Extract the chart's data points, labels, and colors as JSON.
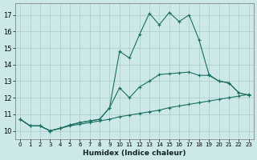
{
  "xlabel": "Humidex (Indice chaleur)",
  "xlim": [
    -0.5,
    23.5
  ],
  "ylim": [
    9.5,
    17.7
  ],
  "xticks": [
    0,
    1,
    2,
    3,
    4,
    5,
    6,
    7,
    8,
    9,
    10,
    11,
    12,
    13,
    14,
    15,
    16,
    17,
    18,
    19,
    20,
    21,
    22,
    23
  ],
  "yticks": [
    10,
    11,
    12,
    13,
    14,
    15,
    16,
    17
  ],
  "background_color": "#cce8e8",
  "grid_color": "#aacccc",
  "line_color": "#1a7060",
  "line1_y": [
    10.7,
    10.3,
    10.3,
    10.0,
    10.15,
    10.3,
    10.4,
    10.5,
    10.6,
    10.7,
    10.85,
    10.95,
    11.05,
    11.15,
    11.25,
    11.4,
    11.5,
    11.6,
    11.7,
    11.8,
    11.9,
    12.0,
    12.1,
    12.2
  ],
  "line2_y": [
    10.7,
    10.3,
    10.3,
    10.0,
    10.15,
    10.35,
    10.5,
    10.6,
    10.7,
    11.4,
    12.6,
    12.0,
    12.65,
    13.0,
    13.4,
    13.45,
    13.5,
    13.55,
    13.35,
    13.35,
    13.0,
    12.9,
    12.3,
    12.15
  ],
  "line3_y": [
    10.7,
    10.3,
    10.3,
    10.0,
    10.15,
    10.35,
    10.5,
    10.6,
    10.7,
    11.4,
    14.8,
    14.4,
    15.8,
    17.1,
    16.4,
    17.15,
    16.6,
    17.0,
    15.5,
    13.4,
    13.0,
    12.9,
    12.3,
    12.15
  ]
}
